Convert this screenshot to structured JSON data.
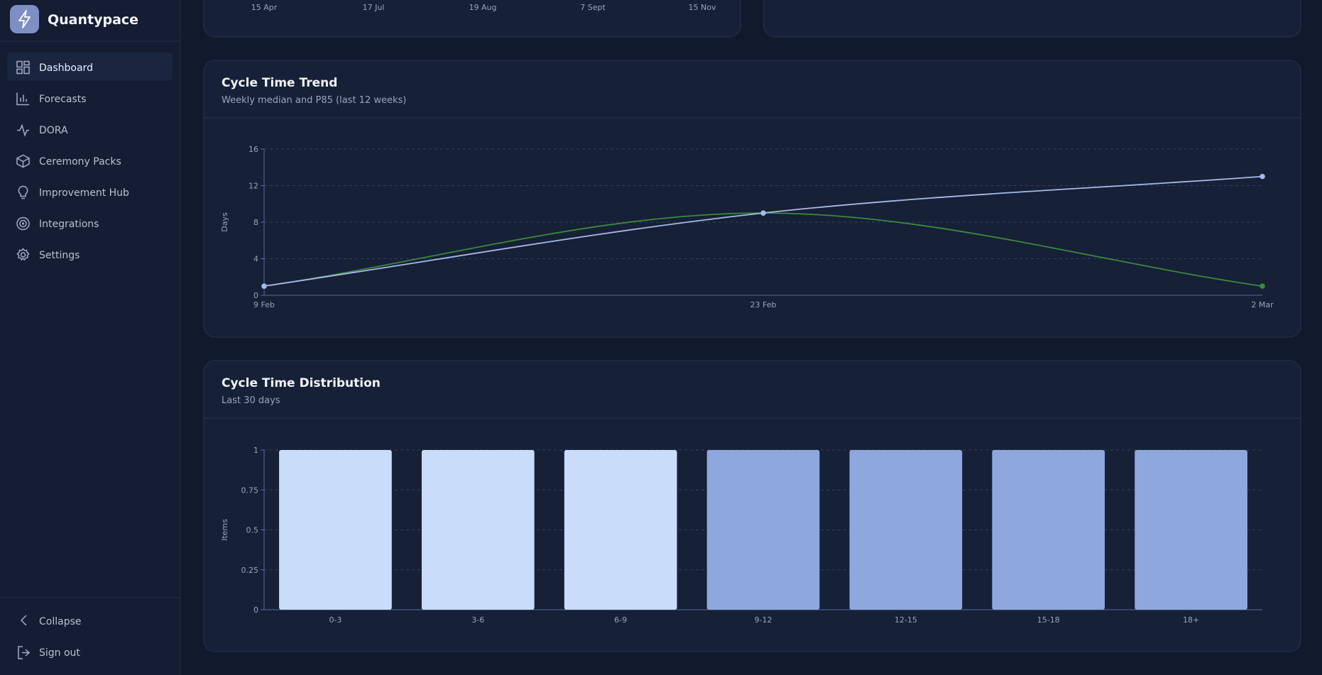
{
  "sidebar": {
    "brand": "Quantypace",
    "nav": [
      "Dashboard",
      "Forecasts",
      "DORA",
      "Ceremony Packs",
      "Improvement Hub",
      "Integrations",
      "Settings"
    ],
    "footer": [
      "Collapse",
      "Sign out"
    ]
  },
  "partial_chart": {
    "x_labels": [
      "15 Apr",
      "17 Jul",
      "19 Aug",
      "7 Sept",
      "15 Nov"
    ]
  },
  "chart_data": [
    {
      "type": "line",
      "title": "Cycle Time Trend",
      "subtitle": "Weekly median and P85 (last 12 weeks)",
      "y_label": "Days",
      "categories": [
        "9 Feb",
        "23 Feb",
        "2 Mar"
      ],
      "series": [
        {
          "color": "#3a8a3e",
          "values": [
            1,
            9,
            1
          ]
        },
        {
          "color": "#a9b8ec",
          "values": [
            1,
            9,
            13
          ]
        }
      ],
      "ylim": [
        0,
        16
      ],
      "yticks": [
        0,
        4,
        8,
        12,
        16
      ],
      "grid": true
    },
    {
      "type": "bar",
      "title": "Cycle Time Distribution",
      "subtitle": "Last 30 days",
      "y_label": "Items",
      "categories": [
        "0-3",
        "3-6",
        "6-9",
        "9-12",
        "12-15",
        "15-18",
        "18+"
      ],
      "values": [
        1,
        1,
        1,
        1,
        1,
        1,
        1
      ],
      "colors": [
        "#c9ddfb",
        "#c9ddfb",
        "#c9ddfb",
        "#8ea8de",
        "#8ea8de",
        "#8ea8de",
        "#8ea8de"
      ],
      "ylim": [
        0,
        1
      ],
      "yticks": [
        0,
        0.25,
        0.5,
        0.75,
        1
      ],
      "grid": true
    }
  ]
}
